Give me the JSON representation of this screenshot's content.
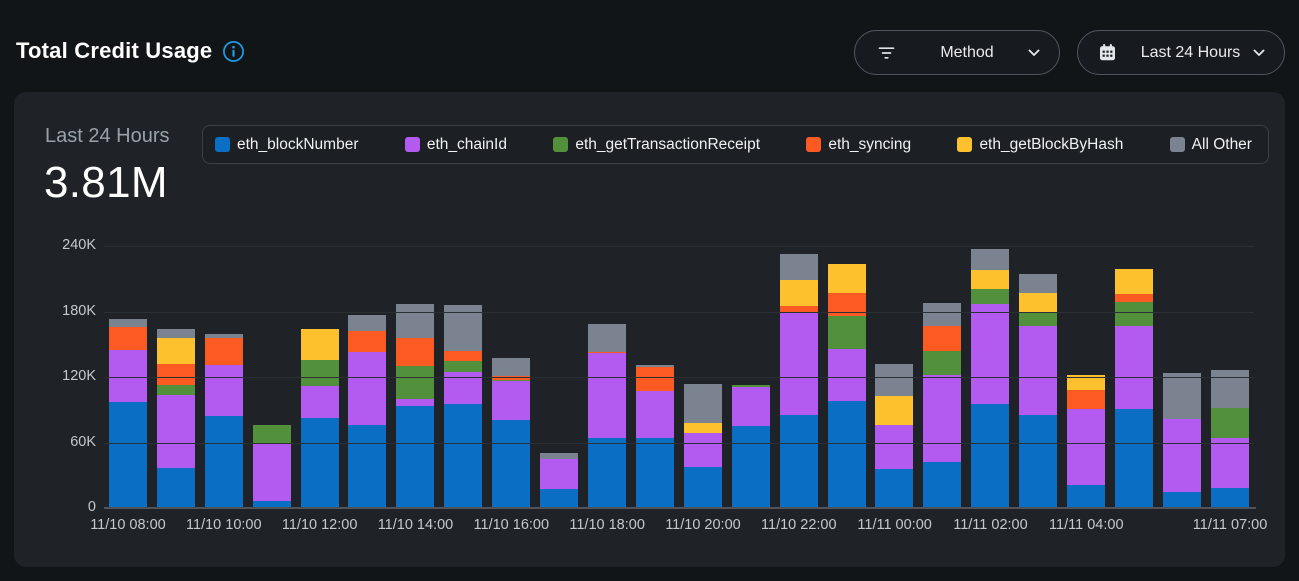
{
  "header": {
    "title": "Total Credit Usage",
    "info_icon": "info-icon",
    "controls": {
      "method_dropdown": {
        "label": "Method",
        "icon": "filter-icon",
        "chevron": "chevron-down-icon"
      },
      "time_range_dropdown": {
        "label": "Last 24 Hours",
        "icon": "calendar-icon",
        "chevron": "chevron-down-icon"
      }
    }
  },
  "card": {
    "period_label": "Last 24 Hours",
    "total": "3.81M"
  },
  "colors": {
    "page_bg": "#121518",
    "card_bg": "#1f2327",
    "accent_info": "#1e9de8",
    "gridline": "#2b3035",
    "axis_line": "#4e545a",
    "axis_text": "#c5c9cd"
  },
  "chart_data": {
    "type": "bar",
    "stacked": true,
    "title": "Total Credit Usage",
    "unit": "credits (values in thousands, K)",
    "ylim": [
      0,
      240
    ],
    "grid": true,
    "legend_position": "top",
    "y_ticks": [
      "240K",
      "180K",
      "120K",
      "60K",
      "0"
    ],
    "categories": [
      "11/10 08:00",
      "11/10 09:00",
      "11/10 10:00",
      "11/10 11:00",
      "11/10 12:00",
      "11/10 13:00",
      "11/10 14:00",
      "11/10 15:00",
      "11/10 16:00",
      "11/10 17:00",
      "11/10 18:00",
      "11/10 19:00",
      "11/10 20:00",
      "11/10 21:00",
      "11/10 22:00",
      "11/10 23:00",
      "11/11 00:00",
      "11/11 01:00",
      "11/11 02:00",
      "11/11 03:00",
      "11/11 04:00",
      "11/11 05:00",
      "11/11 06:00",
      "11/11 07:00"
    ],
    "x_tick_labels": [
      "11/10 08:00",
      "11/10 10:00",
      "11/10 12:00",
      "11/10 14:00",
      "11/10 16:00",
      "11/10 18:00",
      "11/10 20:00",
      "11/10 22:00",
      "11/11 00:00",
      "11/11 02:00",
      "11/11 04:00",
      "11/11 07:00"
    ],
    "x_tick_indices": [
      0,
      2,
      4,
      6,
      8,
      10,
      12,
      14,
      16,
      18,
      20,
      23
    ],
    "series": [
      {
        "name": "eth_blockNumber",
        "color": "#0a6fc4",
        "values": [
          97,
          37,
          84,
          6,
          82,
          76,
          93,
          95,
          81,
          17,
          64,
          64,
          38,
          75,
          85,
          98,
          36,
          42,
          95,
          85,
          21,
          91,
          15,
          18
        ]
      },
      {
        "name": "eth_chainId",
        "color": "#b35af0",
        "values": [
          48,
          67,
          47,
          54,
          30,
          67,
          7,
          30,
          35,
          28,
          78,
          43,
          31,
          36,
          95,
          48,
          40,
          80,
          92,
          82,
          70,
          76,
          67,
          46
        ]
      },
      {
        "name": "eth_getTransactionReceipt",
        "color": "#52903c",
        "values": [
          0,
          9,
          0,
          16,
          24,
          0,
          30,
          10,
          1,
          0,
          0,
          0,
          0,
          2,
          0,
          30,
          0,
          22,
          14,
          12,
          0,
          22,
          0,
          28
        ]
      },
      {
        "name": "eth_syncing",
        "color": "#fc5a23",
        "values": [
          21,
          19,
          25,
          0,
          0,
          19,
          26,
          9,
          4,
          0,
          1,
          22,
          0,
          0,
          5,
          21,
          0,
          23,
          0,
          0,
          17,
          7,
          0,
          0
        ]
      },
      {
        "name": "eth_getBlockByHash",
        "color": "#fec12e",
        "values": [
          0,
          24,
          0,
          0,
          28,
          0,
          0,
          0,
          0,
          0,
          0,
          0,
          9,
          0,
          24,
          27,
          27,
          0,
          17,
          18,
          14,
          23,
          0,
          0
        ]
      },
      {
        "name": "All Other",
        "color": "#7b8391",
        "values": [
          7,
          8,
          3,
          0,
          0,
          15,
          31,
          42,
          16,
          5,
          26,
          2,
          36,
          0,
          24,
          0,
          29,
          21,
          19,
          17,
          0,
          0,
          42,
          34
        ]
      }
    ],
    "total_label": "3.81M"
  }
}
